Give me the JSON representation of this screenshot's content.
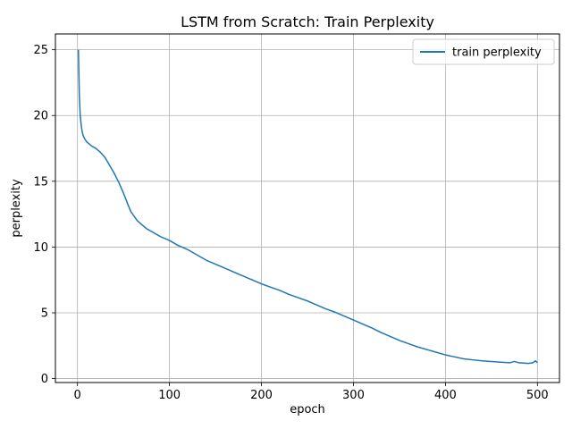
{
  "chart_data": {
    "type": "line",
    "title": "LSTM from Scratch: Train Perplexity",
    "xlabel": "epoch",
    "ylabel": "perplexity",
    "xlim": [
      -24,
      524
    ],
    "ylim": [
      -0.3,
      26.2
    ],
    "xticks": [
      0,
      100,
      200,
      300,
      400,
      500
    ],
    "yticks": [
      0,
      5,
      10,
      15,
      20,
      25
    ],
    "xtick_labels": [
      "0",
      "100",
      "200",
      "300",
      "400",
      "500"
    ],
    "ytick_labels": [
      "0",
      "5",
      "10",
      "15",
      "20",
      "25"
    ],
    "grid": true,
    "legend_position": "upper right",
    "colors": {
      "series": "#1f77b4",
      "grid": "#b0b0b0",
      "axes": "#000000"
    },
    "series": [
      {
        "name": "train perplexity",
        "x": [
          1,
          2,
          3,
          4,
          5,
          6,
          8,
          10,
          15,
          20,
          25,
          30,
          35,
          40,
          45,
          50,
          55,
          58,
          60,
          65,
          70,
          75,
          80,
          85,
          90,
          100,
          110,
          120,
          130,
          140,
          150,
          160,
          170,
          180,
          190,
          200,
          210,
          220,
          230,
          240,
          250,
          260,
          270,
          280,
          290,
          300,
          310,
          320,
          330,
          340,
          350,
          360,
          370,
          380,
          390,
          400,
          410,
          420,
          430,
          440,
          450,
          460,
          470,
          475,
          480,
          490,
          495,
          498,
          500
        ],
        "y": [
          25.0,
          21.5,
          20.0,
          19.3,
          18.8,
          18.5,
          18.2,
          18.0,
          17.7,
          17.5,
          17.2,
          16.8,
          16.2,
          15.6,
          14.9,
          14.1,
          13.2,
          12.7,
          12.5,
          12.0,
          11.7,
          11.4,
          11.2,
          11.0,
          10.8,
          10.5,
          10.1,
          9.8,
          9.4,
          9.0,
          8.7,
          8.4,
          8.1,
          7.8,
          7.5,
          7.2,
          6.95,
          6.7,
          6.4,
          6.15,
          5.9,
          5.6,
          5.3,
          5.05,
          4.75,
          4.45,
          4.15,
          3.85,
          3.5,
          3.2,
          2.9,
          2.65,
          2.4,
          2.2,
          2.0,
          1.8,
          1.65,
          1.5,
          1.42,
          1.35,
          1.3,
          1.25,
          1.2,
          1.3,
          1.2,
          1.15,
          1.2,
          1.35,
          1.2
        ]
      }
    ]
  }
}
